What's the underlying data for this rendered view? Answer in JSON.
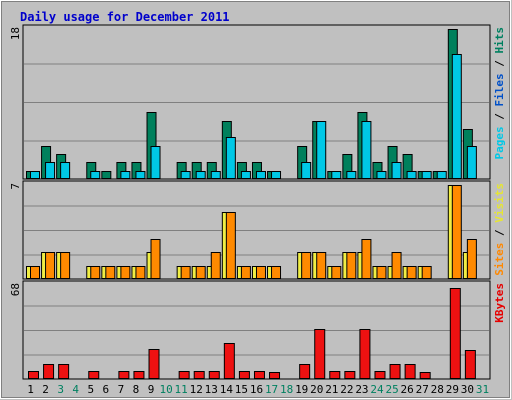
{
  "chart_data": {
    "type": "bar",
    "title": "Daily usage for December 2011",
    "categories": [
      "1",
      "2",
      "3",
      "4",
      "5",
      "6",
      "7",
      "8",
      "9",
      "10",
      "11",
      "12",
      "13",
      "14",
      "15",
      "16",
      "17",
      "18",
      "19",
      "20",
      "21",
      "22",
      "23",
      "24",
      "25",
      "26",
      "27",
      "28",
      "29",
      "30",
      "31"
    ],
    "weekend_days": [
      "3",
      "4",
      "10",
      "11",
      "17",
      "18",
      "24",
      "25",
      "31"
    ],
    "panels": [
      {
        "id": "hits",
        "ymax": 18,
        "ymax_label": "18",
        "axis_label_parts": [
          {
            "text": "Pages",
            "color": "#00c8e6"
          },
          {
            "text": " / ",
            "color": "#000000"
          },
          {
            "text": "Files",
            "color": "#0050c8"
          },
          {
            "text": " / ",
            "color": "#000000"
          },
          {
            "text": "Hits",
            "color": "#008060"
          }
        ],
        "series": [
          {
            "name": "Hits",
            "color": "#00805c",
            "values": [
              1,
              4,
              3,
              0,
              2,
              1,
              2,
              2,
              8,
              0,
              2,
              2,
              2,
              7,
              2,
              2,
              1,
              0,
              4,
              7,
              1,
              3,
              8,
              2,
              4,
              3,
              1,
              1,
              18,
              6,
              0
            ]
          },
          {
            "name": "Files",
            "color": "#00c8e6",
            "values": [
              1,
              2,
              2,
              0,
              1,
              0,
              1,
              1,
              4,
              0,
              1,
              1,
              1,
              5,
              1,
              1,
              1,
              0,
              2,
              7,
              1,
              1,
              7,
              1,
              2,
              1,
              1,
              1,
              15,
              4,
              0
            ]
          }
        ]
      },
      {
        "id": "visits",
        "ymax": 7,
        "ymax_label": "7",
        "axis_label_parts": [
          {
            "text": "Sites",
            "color": "#ff8800"
          },
          {
            "text": " / ",
            "color": "#000000"
          },
          {
            "text": "Visits",
            "color": "#e6e632"
          }
        ],
        "series": [
          {
            "name": "Visits",
            "color": "#f0ee44",
            "values": [
              1,
              2,
              2,
              0,
              1,
              1,
              1,
              1,
              2,
              0,
              1,
              1,
              1,
              5,
              1,
              1,
              1,
              0,
              2,
              2,
              1,
              2,
              2,
              1,
              1,
              1,
              1,
              0,
              7,
              2,
              0
            ]
          },
          {
            "name": "Sites",
            "color": "#ff8a00",
            "values": [
              1,
              2,
              2,
              0,
              1,
              1,
              1,
              1,
              3,
              0,
              1,
              1,
              2,
              5,
              1,
              1,
              1,
              0,
              2,
              2,
              1,
              2,
              3,
              1,
              2,
              1,
              1,
              0,
              7,
              3,
              0
            ]
          }
        ]
      },
      {
        "id": "kbytes",
        "ymax": 68,
        "ymax_label": "68",
        "axis_label_parts": [
          {
            "text": "KBytes",
            "color": "#e60000"
          }
        ],
        "series": [
          {
            "name": "KBytes",
            "color": "#ee1111",
            "values": [
              6,
              11,
              11,
              0,
              6,
              1,
              6,
              6,
              22,
              0,
              6,
              6,
              6,
              26,
              6,
              6,
              5,
              0,
              11,
              36,
              6,
              6,
              36,
              6,
              11,
              11,
              5,
              1,
              66,
              21,
              0
            ]
          }
        ]
      }
    ]
  }
}
